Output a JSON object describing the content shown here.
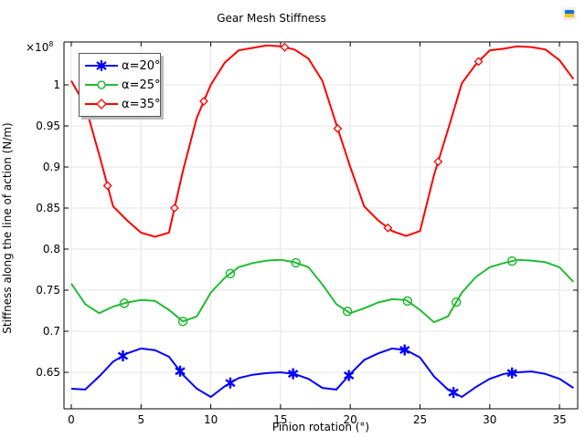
{
  "window": {
    "title": "Gear Mesh Stiffness",
    "icon": "app-logo-icon"
  },
  "chart_data": {
    "type": "line",
    "title": "Gear Mesh Stiffness",
    "xlabel": "Pinion rotation (°)",
    "ylabel": "Stiffness along the line of action (N/m)",
    "y_exponent": "×10^8",
    "xlim": [
      0,
      36
    ],
    "ylim": [
      0.615,
      1.052
    ],
    "x_ticks": [
      "0",
      "5",
      "10",
      "15",
      "20",
      "25",
      "30",
      "35"
    ],
    "y_ticks": [
      "0.65",
      "0.7",
      "0.75",
      "0.8",
      "0.85",
      "0.9",
      "0.95",
      "1"
    ],
    "grid": true,
    "legend_position": "upper left",
    "x": [
      0,
      1,
      2,
      3,
      4,
      5,
      6,
      7,
      8,
      9,
      10,
      11,
      12,
      13,
      14,
      15,
      16,
      17,
      18,
      19,
      20,
      21,
      22,
      23,
      24,
      25,
      26,
      27,
      28,
      29,
      30,
      31,
      32,
      33,
      34,
      35,
      36
    ],
    "series": [
      {
        "name": "α=20°",
        "color": "#0000ff",
        "marker": "asterisk",
        "values": [
          0.63,
          0.629,
          0.645,
          0.663,
          0.673,
          0.679,
          0.677,
          0.669,
          0.647,
          0.63,
          0.62,
          0.633,
          0.643,
          0.647,
          0.649,
          0.65,
          0.648,
          0.642,
          0.631,
          0.629,
          0.648,
          0.665,
          0.673,
          0.679,
          0.677,
          0.668,
          0.645,
          0.629,
          0.62,
          0.632,
          0.642,
          0.648,
          0.65,
          0.651,
          0.648,
          0.642,
          0.631
        ],
        "marker_x": [
          3.7,
          7.8,
          11.4,
          15.9,
          19.9,
          23.9,
          27.4,
          31.6
        ]
      },
      {
        "name": "α=25°",
        "color": "#22bb33",
        "marker": "circle",
        "values": [
          0.758,
          0.733,
          0.722,
          0.73,
          0.735,
          0.738,
          0.737,
          0.726,
          0.712,
          0.718,
          0.747,
          0.765,
          0.778,
          0.783,
          0.786,
          0.787,
          0.784,
          0.778,
          0.757,
          0.733,
          0.722,
          0.728,
          0.735,
          0.739,
          0.738,
          0.726,
          0.711,
          0.718,
          0.747,
          0.766,
          0.778,
          0.783,
          0.787,
          0.786,
          0.784,
          0.778,
          0.76
        ],
        "marker_x": [
          3.8,
          8.0,
          11.4,
          16.1,
          19.8,
          24.1,
          27.6,
          31.6
        ]
      },
      {
        "name": "α=35°",
        "color": "#ff0000",
        "marker": "diamond",
        "values": [
          1.005,
          0.975,
          0.915,
          0.852,
          0.835,
          0.82,
          0.815,
          0.82,
          0.895,
          0.96,
          1.0,
          1.027,
          1.042,
          1.045,
          1.048,
          1.047,
          1.043,
          1.032,
          1.005,
          0.952,
          0.9,
          0.852,
          0.835,
          0.822,
          0.816,
          0.822,
          0.89,
          0.945,
          1.002,
          1.025,
          1.042,
          1.044,
          1.047,
          1.046,
          1.043,
          1.03,
          1.007
        ],
        "marker_x": [
          2.6,
          7.4,
          9.5,
          15.3,
          19.1,
          22.7,
          26.3,
          29.2
        ]
      }
    ]
  }
}
